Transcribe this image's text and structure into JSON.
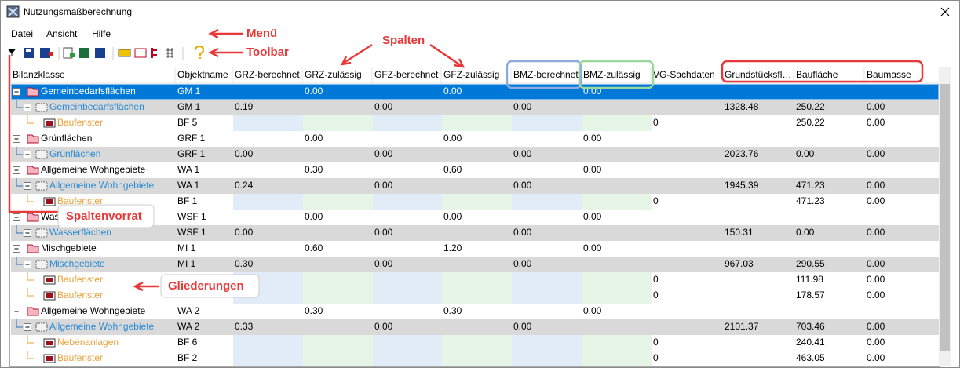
{
  "window": {
    "title": "Nutzungsmaßberechnung"
  },
  "menu": [
    "Datei",
    "Ansicht",
    "Hilfe"
  ],
  "annotations": {
    "menu": "Menü",
    "toolbar": "Toolbar",
    "columns": "Spalten",
    "column_pool": "Spaltenvorrat",
    "outlines": "Gliederungen"
  },
  "table": {
    "columns": [
      "Bilanzklasse",
      "Objektname",
      "GRZ-berechnet",
      "GRZ-zulässig",
      "GFZ-berechnet",
      "GFZ-zulässig",
      "BMZ-berechnet",
      "BMZ-zulässig",
      "VG-Sachdaten",
      "Grundstücksfl…",
      "Baufläche",
      "Baumasse"
    ],
    "rows": [
      {
        "level": 0,
        "cells": [
          "Gemeinbedarfsflächen",
          "GM 1",
          null,
          "0.00",
          null,
          "0.00",
          null,
          "0.00",
          null,
          null,
          null,
          null
        ]
      },
      {
        "level": 1,
        "cells": [
          "Gemeinbedarfsflächen",
          "GM 1",
          "0.19",
          null,
          "0.00",
          null,
          "0.00",
          null,
          null,
          "1328.48",
          "250.22",
          "0.00"
        ]
      },
      {
        "level": 2,
        "cells": [
          "Baufenster",
          "BF 5",
          null,
          null,
          null,
          null,
          null,
          null,
          "0",
          null,
          "250.22",
          "0.00"
        ]
      },
      {
        "level": 0,
        "cells": [
          "Grünflächen",
          "GRF 1",
          null,
          "0.00",
          null,
          "0.00",
          null,
          "0.00",
          null,
          null,
          null,
          null
        ]
      },
      {
        "level": 1,
        "cells": [
          "Grünflächen",
          "GRF 1",
          "0.00",
          null,
          "0.00",
          null,
          "0.00",
          null,
          null,
          "2023.76",
          "0.00",
          "0.00"
        ]
      },
      {
        "level": 0,
        "cells": [
          "Allgemeine Wohngebiete",
          "WA 1",
          null,
          "0.30",
          null,
          "0.60",
          null,
          "0.00",
          null,
          null,
          null,
          null
        ]
      },
      {
        "level": 1,
        "cells": [
          "Allgemeine Wohngebiete",
          "WA 1",
          "0.24",
          null,
          "0.00",
          null,
          "0.00",
          null,
          null,
          "1945.39",
          "471.23",
          "0.00"
        ]
      },
      {
        "level": 2,
        "cells": [
          "Baufenster",
          "BF 1",
          null,
          null,
          null,
          null,
          null,
          null,
          "0",
          null,
          "471.23",
          "0.00"
        ]
      },
      {
        "level": 0,
        "cells": [
          "Wasserflächen",
          "WSF 1",
          null,
          "0.00",
          null,
          "0.00",
          null,
          "0.00",
          null,
          null,
          null,
          null
        ]
      },
      {
        "level": 1,
        "cells": [
          "Wasserflächen",
          "WSF 1",
          "0.00",
          null,
          "0.00",
          null,
          "0.00",
          null,
          null,
          "150.31",
          "0.00",
          "0.00"
        ]
      },
      {
        "level": 0,
        "cells": [
          "Mischgebiete",
          "MI 1",
          null,
          "0.60",
          null,
          "1.20",
          null,
          "0.00",
          null,
          null,
          null,
          null
        ]
      },
      {
        "level": 1,
        "cells": [
          "Mischgebiete",
          "MI 1",
          "0.30",
          null,
          "0.00",
          null,
          "0.00",
          null,
          null,
          "967.03",
          "290.55",
          "0.00"
        ]
      },
      {
        "level": 2,
        "cells": [
          "Baufenster",
          null,
          null,
          null,
          null,
          null,
          null,
          null,
          "0",
          null,
          "111.98",
          "0.00"
        ]
      },
      {
        "level": 2,
        "cells": [
          "Baufenster",
          null,
          null,
          null,
          null,
          null,
          null,
          null,
          "0",
          null,
          "178.57",
          "0.00"
        ]
      },
      {
        "level": 0,
        "cells": [
          "Allgemeine Wohngebiete",
          "WA 2",
          null,
          "0.30",
          null,
          "0.30",
          null,
          "0.00",
          null,
          null,
          null,
          null
        ]
      },
      {
        "level": 1,
        "cells": [
          "Allgemeine Wohngebiete",
          "WA 2",
          "0.33",
          null,
          "0.00",
          null,
          "0.00",
          null,
          null,
          "2101.37",
          "703.46",
          "0.00"
        ]
      },
      {
        "level": 2,
        "cells": [
          "Nebenanlagen",
          "BF 6",
          null,
          null,
          null,
          null,
          null,
          null,
          "0",
          null,
          "240.41",
          "0.00"
        ]
      },
      {
        "level": 2,
        "cells": [
          "Baufenster",
          "BF 2",
          null,
          null,
          null,
          null,
          null,
          null,
          "0",
          null,
          "463.05",
          "0.00"
        ]
      }
    ]
  }
}
